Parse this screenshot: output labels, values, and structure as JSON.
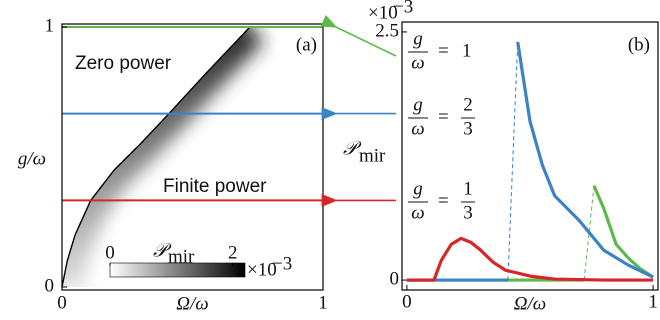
{
  "chart_data": [
    {
      "type": "heatmap",
      "panel_label": "(a)",
      "xlabel": "Ω/ω",
      "ylabel": "g/ω",
      "xlim": [
        0,
        1
      ],
      "ylim": [
        0,
        1
      ],
      "xticks": [
        0,
        1
      ],
      "yticks": [
        0,
        1
      ],
      "region_labels": [
        "Zero power",
        "Finite power"
      ],
      "boundary": {
        "x": [
          0,
          0.02,
          0.05,
          0.11,
          0.2,
          0.3,
          0.41,
          0.55,
          0.72
        ],
        "values": [
          0,
          0.1,
          0.2,
          0.333,
          0.45,
          0.55,
          0.667,
          0.82,
          1
        ]
      },
      "hlines": [
        {
          "value": 1,
          "color": "#5db94b"
        },
        {
          "value": 0.667,
          "color": "#3a83c4"
        },
        {
          "value": 0.333,
          "color": "#d7262a"
        }
      ],
      "colorbar": {
        "label": "𝒫",
        "label_sub": "mir",
        "clim": [
          0,
          2.2
        ],
        "ticks": [
          0,
          2
        ],
        "multiplier": "×10",
        "exponent": "−3"
      }
    },
    {
      "type": "line",
      "panel_label": "(b)",
      "xlabel": "Ω/ω",
      "ylabel": "𝒫",
      "ylabel_sub": "mir",
      "xlim": [
        -0.02,
        1.02
      ],
      "ylim": [
        -0.1,
        2.6
      ],
      "xticks": [
        0,
        1
      ],
      "yticks": [
        0,
        2.5
      ],
      "multiplier": "×10",
      "exponent": "−3",
      "series": [
        {
          "label": [
            "g",
            "ω",
            "=",
            "1"
          ],
          "color": "#5db94b",
          "x": [
            0,
            0.72,
            0.72,
            0.76,
            0.8,
            0.85,
            0.9,
            0.95,
            1
          ],
          "values": [
            0,
            0,
            null,
            0.95,
            0.72,
            0.36,
            0.22,
            0.11,
            0.03
          ]
        },
        {
          "label": [
            "g",
            "ω",
            "=",
            "2",
            "3"
          ],
          "color": "#3a83c4",
          "x": [
            0,
            0.41,
            0.41,
            0.45,
            0.5,
            0.55,
            0.6,
            0.7,
            0.8,
            0.9,
            1
          ],
          "values": [
            0,
            0,
            null,
            2.4,
            1.6,
            1.16,
            0.85,
            0.6,
            0.3,
            0.15,
            0.03
          ]
        },
        {
          "label": [
            "g",
            "ω",
            "=",
            "1",
            "3"
          ],
          "color": "#d7262a",
          "x": [
            0,
            0.11,
            0.14,
            0.18,
            0.22,
            0.26,
            0.3,
            0.35,
            0.4,
            0.5,
            0.6,
            0.8,
            1
          ],
          "values": [
            0,
            0,
            0.2,
            0.36,
            0.42,
            0.38,
            0.3,
            0.18,
            0.1,
            0.04,
            0.01,
            0,
            0
          ]
        }
      ]
    }
  ]
}
